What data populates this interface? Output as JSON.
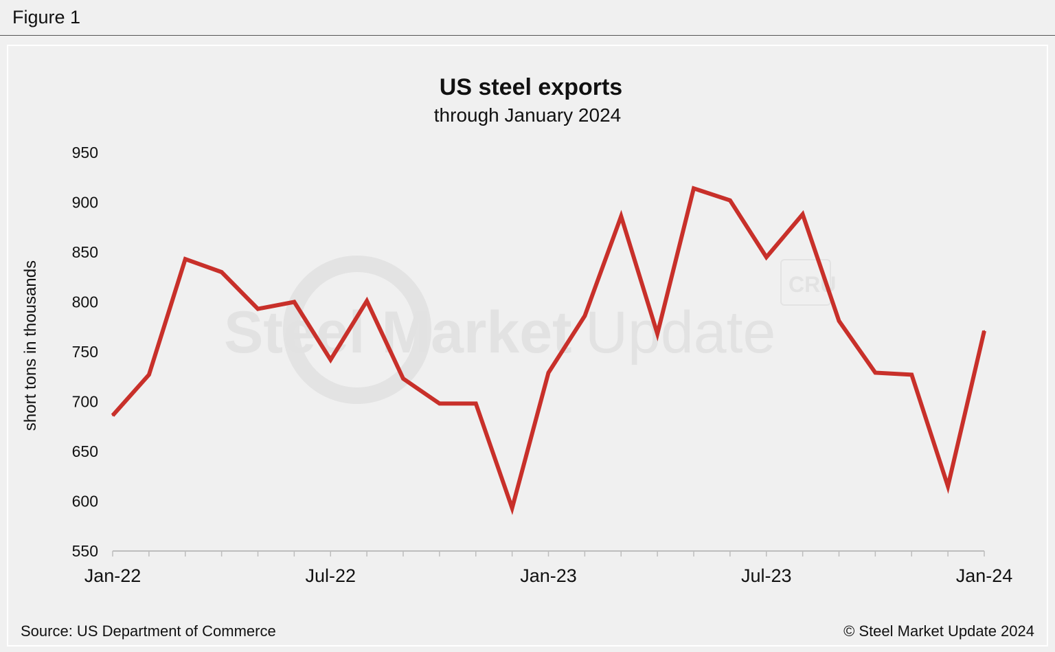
{
  "figure_label": "Figure 1",
  "footer": {
    "source": "Source: US Department of Commerce",
    "copyright": "© Steel Market Update 2024"
  },
  "watermark": {
    "main": "Steel Market",
    "light": "Update",
    "badge": "CRU"
  },
  "colors": {
    "line": "#c8302a",
    "axis": "#bdbdbd",
    "background": "#f0f0f0"
  },
  "chart_data": {
    "type": "line",
    "title": "US steel exports",
    "subtitle": "through January 2024",
    "ylabel": "short tons in thousands",
    "xlabel": "",
    "ylim": [
      550,
      950
    ],
    "yticks": [
      550,
      600,
      650,
      700,
      750,
      800,
      850,
      900,
      950
    ],
    "x": [
      "Jan-22",
      "Feb-22",
      "Mar-22",
      "Apr-22",
      "May-22",
      "Jun-22",
      "Jul-22",
      "Aug-22",
      "Sep-22",
      "Oct-22",
      "Nov-22",
      "Dec-22",
      "Jan-23",
      "Feb-23",
      "Mar-23",
      "Apr-23",
      "May-23",
      "Jun-23",
      "Jul-23",
      "Aug-23",
      "Sep-23",
      "Oct-23",
      "Nov-23",
      "Dec-23",
      "Jan-24"
    ],
    "xtick_labels": [
      "Jan-22",
      "Jul-22",
      "Jan-23",
      "Jul-23",
      "Jan-24"
    ],
    "series": [
      {
        "values": [
          686,
          727,
          843,
          830,
          793,
          800,
          742,
          801,
          723,
          698,
          698,
          593,
          729,
          786,
          886,
          768,
          914,
          902,
          845,
          888,
          781,
          729,
          727,
          615,
          771
        ]
      }
    ]
  }
}
